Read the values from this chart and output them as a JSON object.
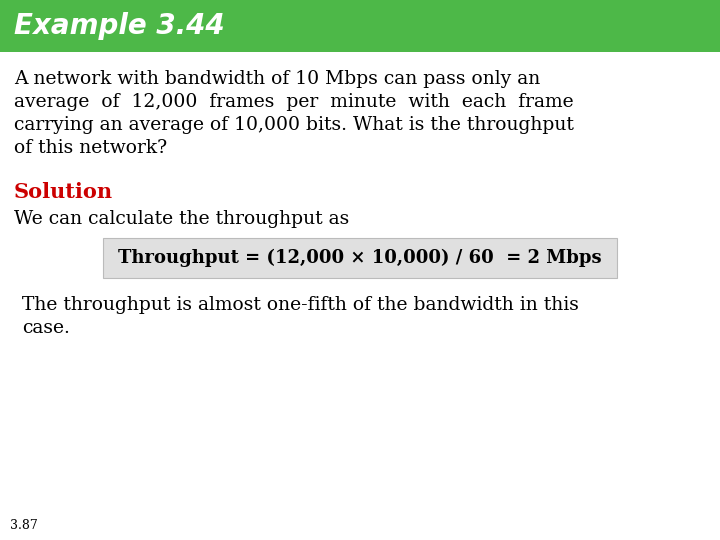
{
  "title": "Example 3.44",
  "title_bg_color": "#4db848",
  "title_text_color": "#ffffff",
  "title_fontsize": 20,
  "body_bg_color": "#ffffff",
  "line1": "A network with bandwidth of 10 Mbps can pass only an",
  "line2": "average  of  12,000  frames  per  minute  with  each  frame",
  "line3": "carrying an average of 10,000 bits. What is the throughput",
  "line4": "of this network?",
  "solution_label": "Solution",
  "solution_color": "#cc0000",
  "solution_fontsize": 15,
  "solution_sub": "We can calculate the throughput as",
  "formula_text": "Throughput = (12,000 × 10,000) / 60  = 2 Mbps",
  "formula_bg": "#e0e0e0",
  "formula_fontsize": 13,
  "footer_line1": "The throughput is almost one-fifth of the bandwidth in this",
  "footer_line2": "case.",
  "page_number": "3.87",
  "body_fontsize": 13.5
}
